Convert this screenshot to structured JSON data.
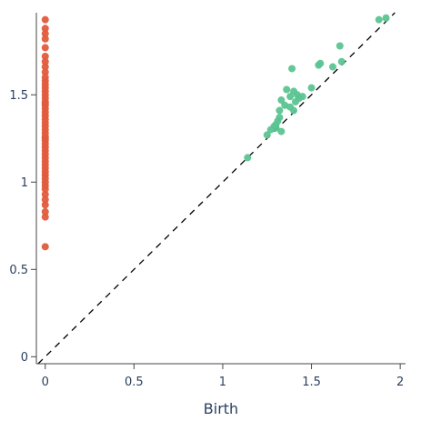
{
  "chart_data": {
    "type": "scatter",
    "title": "",
    "xlabel": "Birth",
    "ylabel": "",
    "xlim": [
      -0.05,
      2.03
    ],
    "ylim": [
      -0.04,
      1.97
    ],
    "x_ticks": [
      0,
      0.5,
      1,
      1.5,
      2
    ],
    "x_tick_labels": [
      "0",
      "0.5",
      "1",
      "1.5",
      "2"
    ],
    "y_ticks": [
      0,
      0.5,
      1,
      1.5
    ],
    "y_tick_labels": [
      "0",
      "0.5",
      "1",
      "1.5"
    ],
    "grid": false,
    "legend": "none",
    "diagonal": {
      "style": "dashed",
      "color": "#000000"
    },
    "series": [
      {
        "color": "#e05b3c",
        "x": [
          0,
          0,
          0,
          0,
          0,
          0,
          0,
          0,
          0,
          0,
          0,
          0,
          0,
          0,
          0,
          0,
          0,
          0,
          0,
          0,
          0,
          0,
          0,
          0,
          0,
          0,
          0,
          0,
          0,
          0,
          0,
          0,
          0,
          0,
          0,
          0,
          0,
          0,
          0,
          0,
          0,
          0,
          0,
          0,
          0,
          0,
          0,
          0,
          0,
          0
        ],
        "y": [
          1.93,
          1.88,
          1.85,
          1.82,
          1.77,
          1.72,
          1.69,
          1.66,
          1.63,
          1.6,
          1.58,
          1.56,
          1.54,
          1.52,
          1.5,
          1.48,
          1.46,
          1.44,
          1.42,
          1.4,
          1.38,
          1.36,
          1.34,
          1.32,
          1.3,
          1.28,
          1.26,
          1.24,
          1.22,
          1.2,
          1.18,
          1.16,
          1.14,
          1.12,
          1.1,
          1.08,
          1.06,
          1.04,
          1.02,
          1.0,
          0.98,
          0.96,
          0.93,
          0.9,
          0.87,
          0.83,
          0.8,
          0.63,
          1.45,
          1.25
        ]
      },
      {
        "color": "#5bc492",
        "x": [
          1.14,
          1.25,
          1.27,
          1.29,
          1.3,
          1.31,
          1.3,
          1.32,
          1.32,
          1.33,
          1.35,
          1.36,
          1.38,
          1.38,
          1.4,
          1.4,
          1.41,
          1.42,
          1.43,
          1.45,
          1.39,
          1.33,
          1.5,
          1.54,
          1.55,
          1.62,
          1.66,
          1.67,
          1.88,
          1.92
        ],
        "y": [
          1.14,
          1.27,
          1.3,
          1.32,
          1.33,
          1.35,
          1.31,
          1.37,
          1.41,
          1.47,
          1.44,
          1.53,
          1.49,
          1.43,
          1.52,
          1.41,
          1.46,
          1.5,
          1.48,
          1.49,
          1.65,
          1.29,
          1.54,
          1.67,
          1.68,
          1.66,
          1.78,
          1.69,
          1.93,
          1.94
        ]
      }
    ]
  }
}
